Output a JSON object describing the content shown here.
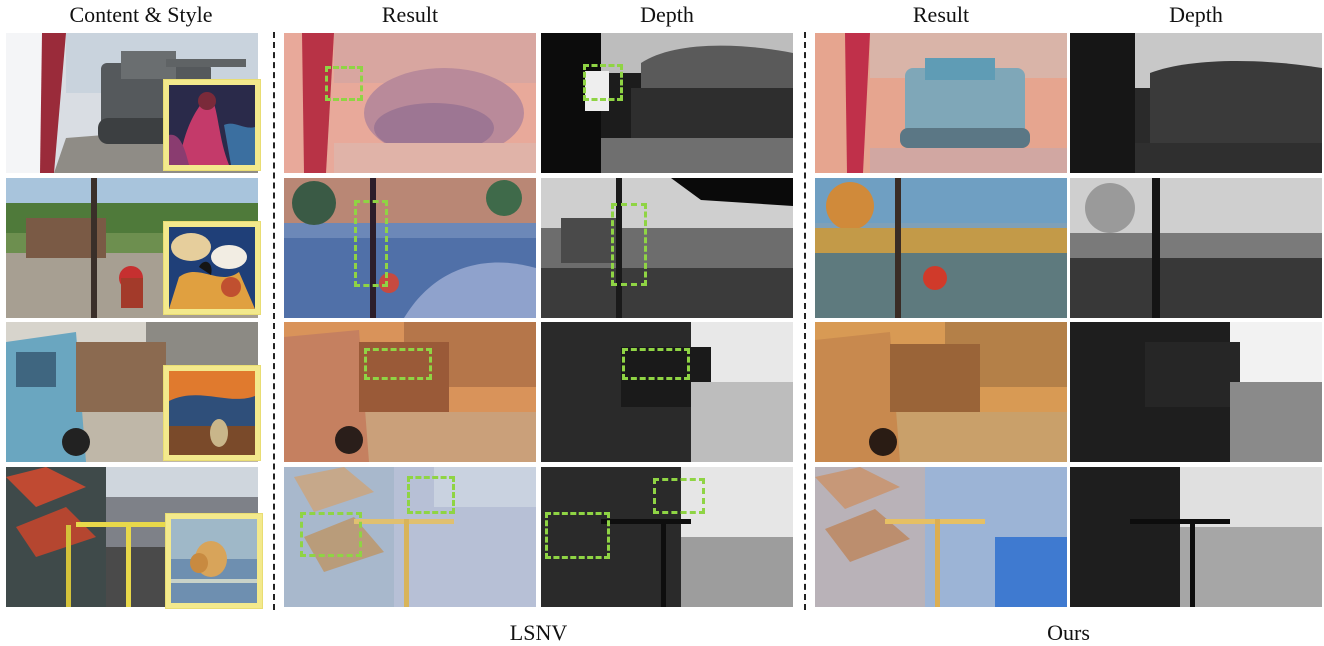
{
  "headers": {
    "content_style": "Content & Style",
    "result_1": "Result",
    "depth_1": "Depth",
    "result_2": "Result",
    "depth_2": "Depth"
  },
  "footers": {
    "method_1": "LSNV",
    "method_2": "Ours"
  },
  "colors": {
    "style_frame": "#f3e98c",
    "highlight_box": "#8fd444",
    "separator": "#222222"
  },
  "rows": [
    {
      "scene": "tank",
      "style": "red-figure-painting"
    },
    {
      "scene": "playground",
      "style": "abstract-blue-shapes"
    },
    {
      "scene": "truck",
      "style": "the-scream"
    },
    {
      "scene": "railway",
      "style": "impressionist-landscape"
    }
  ]
}
